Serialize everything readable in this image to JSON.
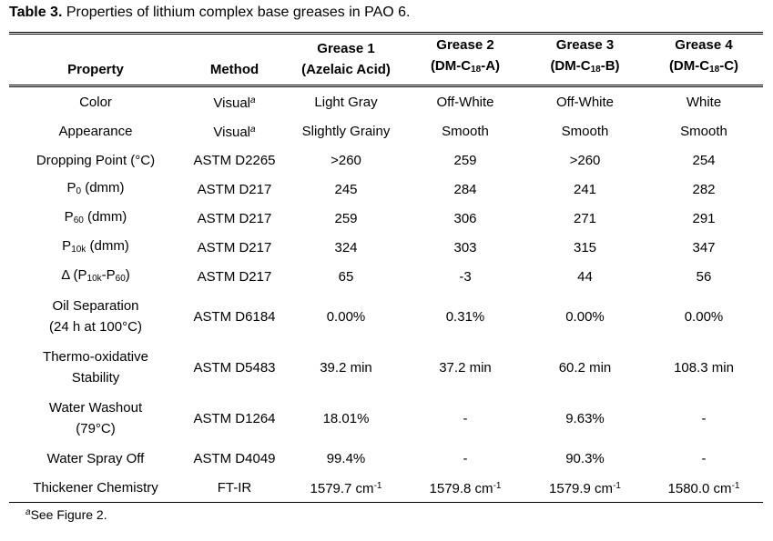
{
  "title": [
    {
      "b": "Table 3."
    },
    {
      "t": " Properties of lithium complex base greases in PAO 6."
    }
  ],
  "table": {
    "header": [
      [
        "Property"
      ],
      [
        "Method"
      ],
      [
        "Grease 1",
        "(Azelaic Acid)"
      ],
      [
        "Grease 2",
        [
          {
            "t": "(DM-C"
          },
          {
            "sub": "18"
          },
          {
            "t": "-A)"
          }
        ]
      ],
      [
        "Grease 3",
        [
          {
            "t": "(DM-C"
          },
          {
            "sub": "18"
          },
          {
            "t": "-B)"
          }
        ]
      ],
      [
        "Grease 4",
        [
          {
            "t": "(DM-C"
          },
          {
            "sub": "18"
          },
          {
            "t": "-C)"
          }
        ]
      ]
    ],
    "rows": [
      [
        [
          "Color"
        ],
        [
          [
            {
              "t": "Visual"
            },
            {
              "sup": "a"
            }
          ]
        ],
        [
          "Light Gray"
        ],
        [
          "Off-White"
        ],
        [
          "Off-White"
        ],
        [
          "White"
        ]
      ],
      [
        [
          "Appearance"
        ],
        [
          [
            {
              "t": "Visual"
            },
            {
              "sup": "a"
            }
          ]
        ],
        [
          "Slightly Grainy"
        ],
        [
          "Smooth"
        ],
        [
          "Smooth"
        ],
        [
          "Smooth"
        ]
      ],
      [
        [
          "Dropping Point (°C)"
        ],
        [
          "ASTM D2265"
        ],
        [
          ">260"
        ],
        [
          "259"
        ],
        [
          ">260"
        ],
        [
          "254"
        ]
      ],
      [
        [
          [
            {
              "t": "P"
            },
            {
              "sub": "0"
            },
            {
              "t": " (dmm)"
            }
          ]
        ],
        [
          "ASTM D217"
        ],
        [
          "245"
        ],
        [
          "284"
        ],
        [
          "241"
        ],
        [
          "282"
        ]
      ],
      [
        [
          [
            {
              "t": "P"
            },
            {
              "sub": "60"
            },
            {
              "t": " (dmm)"
            }
          ]
        ],
        [
          "ASTM D217"
        ],
        [
          "259"
        ],
        [
          "306"
        ],
        [
          "271"
        ],
        [
          "291"
        ]
      ],
      [
        [
          [
            {
              "t": "P"
            },
            {
              "sub": "10k"
            },
            {
              "t": " (dmm)"
            }
          ]
        ],
        [
          "ASTM D217"
        ],
        [
          "324"
        ],
        [
          "303"
        ],
        [
          "315"
        ],
        [
          "347"
        ]
      ],
      [
        [
          [
            {
              "t": "Δ (P"
            },
            {
              "sub": "10k"
            },
            {
              "t": "-P"
            },
            {
              "sub": "60"
            },
            {
              "t": ")"
            }
          ]
        ],
        [
          "ASTM D217"
        ],
        [
          "65"
        ],
        [
          "-3"
        ],
        [
          "44"
        ],
        [
          "56"
        ]
      ],
      [
        [
          "Oil Separation",
          "(24 h at 100°C)"
        ],
        [
          "ASTM D6184"
        ],
        [
          "0.00%"
        ],
        [
          "0.31%"
        ],
        [
          "0.00%"
        ],
        [
          "0.00%"
        ]
      ],
      [
        [
          "Thermo-oxidative",
          "Stability"
        ],
        [
          "ASTM D5483"
        ],
        [
          "39.2 min"
        ],
        [
          "37.2 min"
        ],
        [
          "60.2 min"
        ],
        [
          "108.3 min"
        ]
      ],
      [
        [
          "Water Washout",
          "(79°C)"
        ],
        [
          "ASTM D1264"
        ],
        [
          "18.01%"
        ],
        [
          "-"
        ],
        [
          "9.63%"
        ],
        [
          "-"
        ]
      ],
      [
        [
          "Water Spray Off"
        ],
        [
          "ASTM D4049"
        ],
        [
          "99.4%"
        ],
        [
          "-"
        ],
        [
          "90.3%"
        ],
        [
          "-"
        ]
      ],
      [
        [
          "Thickener Chemistry"
        ],
        [
          "FT-IR"
        ],
        [
          [
            {
              "t": "1579.7 cm"
            },
            {
              "sup": "-1"
            }
          ]
        ],
        [
          [
            {
              "t": "1579.8 cm"
            },
            {
              "sup": "-1"
            }
          ]
        ],
        [
          [
            {
              "t": "1579.9 cm"
            },
            {
              "sup": "-1"
            }
          ]
        ],
        [
          [
            {
              "t": "1580.0 cm"
            },
            {
              "sup": "-1"
            }
          ]
        ]
      ]
    ]
  },
  "footnote": [
    {
      "sup": "a"
    },
    {
      "t": "See Figure 2."
    }
  ]
}
